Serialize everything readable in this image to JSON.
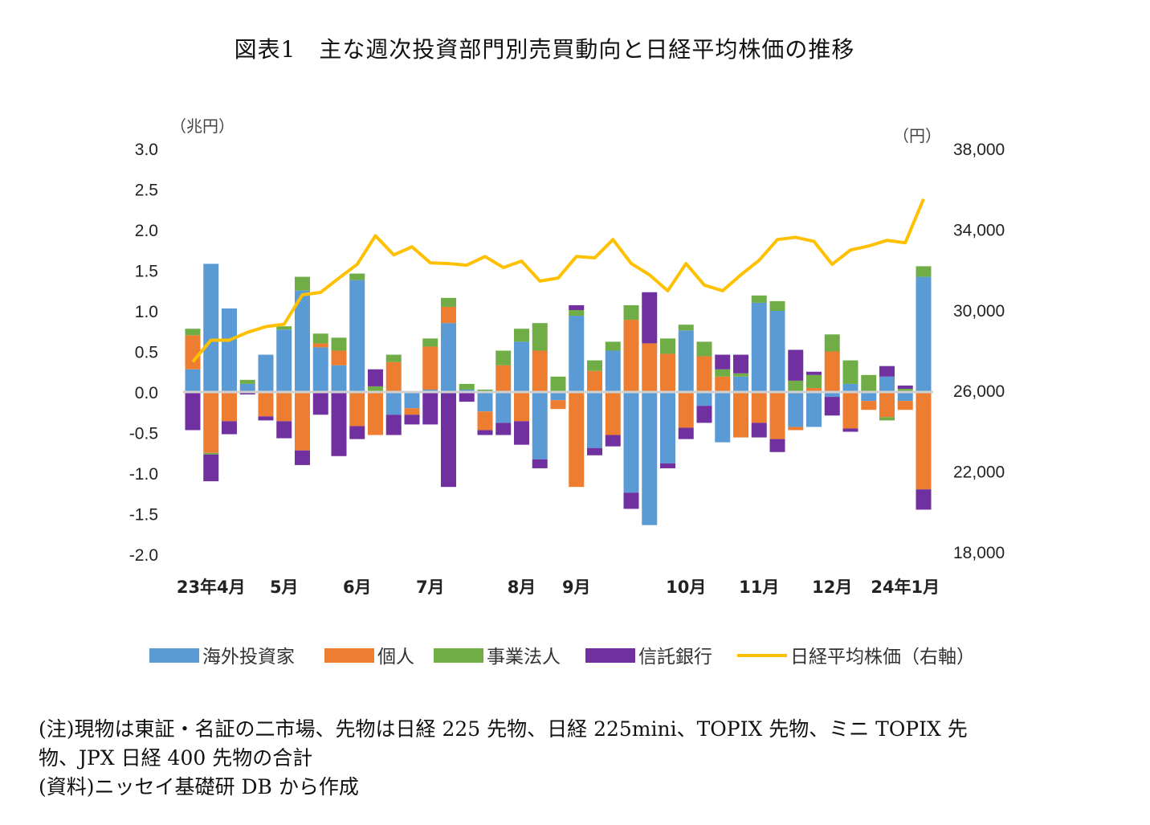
{
  "title": "図表1　主な週次投資部門別売買動向と日経平均株価の推移",
  "notes": {
    "line1": "(注)現物は東証・名証の二市場、先物は日経 225 先物、日経 225mini、TOPIX 先物、ミニ TOPIX 先",
    "line2": "物、JPX 日経 400 先物の合計",
    "line3": "(資料)ニッセイ基礎研 DB から作成"
  },
  "chart_data": {
    "type": "bar",
    "stacked": true,
    "title": "図表1　主な週次投資部門別売買動向と日経平均株価の推移",
    "left_axis": {
      "unit": "（兆円）",
      "range": [
        -2.0,
        3.0
      ],
      "ticks": [
        "3.0",
        "2.5",
        "2.0",
        "1.5",
        "1.0",
        "0.5",
        "0.0",
        "-0.5",
        "-1.0",
        "-1.5",
        "-2.0"
      ]
    },
    "right_axis": {
      "unit": "（円）",
      "range": [
        18000,
        38000
      ],
      "ticks": [
        "38,000",
        "34,000",
        "30,000",
        "26,000",
        "22,000",
        "18,000"
      ]
    },
    "grid": false,
    "legend_position": "bottom",
    "categories": [
      "",
      "23年4月",
      "",
      "",
      "",
      "5月",
      "",
      "",
      "",
      "6月",
      "",
      "",
      "",
      "7月",
      "",
      "",
      "",
      "",
      "8月",
      "",
      "",
      "9月",
      "",
      "",
      "",
      "",
      "",
      "10月",
      "",
      "",
      "",
      "11月",
      "",
      "",
      "",
      "12月",
      "",
      "",
      "",
      "24年1月",
      ""
    ],
    "series": [
      {
        "name": "海外投資家",
        "color": "#5b9bd5",
        "values": [
          0.28,
          1.58,
          1.03,
          0.1,
          0.46,
          0.77,
          1.25,
          0.55,
          0.33,
          1.38,
          0,
          -0.28,
          -0.2,
          0.03,
          0.85,
          0.03,
          -0.24,
          -0.38,
          0.62,
          -0.83,
          -0.1,
          0.94,
          -0.69,
          0.51,
          -1.24,
          -1.64,
          -0.88,
          0.76,
          -0.17,
          -0.62,
          0.19,
          1.1,
          1.0,
          -0.43,
          -0.43,
          -0.06,
          0.1,
          -0.11,
          0.19,
          -0.11,
          1.42
        ]
      },
      {
        "name": "個人",
        "color": "#ed7d31",
        "values": [
          0.42,
          -0.75,
          -0.36,
          0,
          -0.3,
          -0.36,
          -0.72,
          0.05,
          0.18,
          -0.42,
          -0.53,
          0.37,
          -0.08,
          0.53,
          0.2,
          0,
          -0.23,
          0.33,
          -0.36,
          0.51,
          -0.11,
          -1.17,
          0.26,
          -0.53,
          0.89,
          0.6,
          0.47,
          -0.44,
          0.44,
          0.19,
          -0.56,
          -0.38,
          -0.58,
          -0.04,
          0.05,
          0.5,
          -0.45,
          -0.11,
          -0.31,
          -0.11,
          -1.2
        ]
      },
      {
        "name": "事業法人",
        "color": "#70ad47",
        "values": [
          0.08,
          -0.02,
          0,
          0.05,
          0,
          0.04,
          0.17,
          0.12,
          0.16,
          0.08,
          0.07,
          0.09,
          0,
          0.1,
          0.11,
          0.07,
          0.03,
          0.18,
          0.16,
          0.34,
          0.19,
          0.07,
          0.13,
          0.11,
          0.18,
          0,
          0.19,
          0.07,
          0.18,
          0.09,
          0.04,
          0.09,
          0.12,
          0.14,
          0.16,
          0.21,
          0.29,
          0.21,
          -0.04,
          0.04,
          0.13
        ]
      },
      {
        "name": "信託銀行",
        "color": "#7030a0",
        "values": [
          -0.47,
          -0.33,
          -0.16,
          -0.03,
          -0.05,
          -0.21,
          -0.18,
          -0.28,
          -0.79,
          -0.16,
          0.21,
          -0.25,
          -0.12,
          -0.4,
          -1.17,
          -0.12,
          -0.06,
          -0.15,
          -0.29,
          -0.11,
          0,
          0.06,
          -0.09,
          -0.14,
          -0.2,
          0.63,
          -0.06,
          -0.14,
          -0.21,
          0.18,
          0.23,
          -0.18,
          -0.16,
          0.38,
          0.04,
          -0.23,
          -0.04,
          0,
          0.13,
          0.04,
          -0.25
        ]
      }
    ],
    "line_series": {
      "name": "日経平均株価（右軸）",
      "color": "#ffc000",
      "axis": "right",
      "values": [
        27430,
        28500,
        28500,
        28890,
        29170,
        29290,
        30750,
        30870,
        31580,
        32260,
        33680,
        32730,
        33130,
        32340,
        32300,
        32220,
        32650,
        32100,
        32420,
        31430,
        31580,
        32650,
        32580,
        33490,
        32300,
        31740,
        30950,
        32300,
        31230,
        30950,
        31740,
        32460,
        33490,
        33600,
        33400,
        32260,
        32970,
        33170,
        33450,
        33330,
        35500
      ]
    }
  }
}
